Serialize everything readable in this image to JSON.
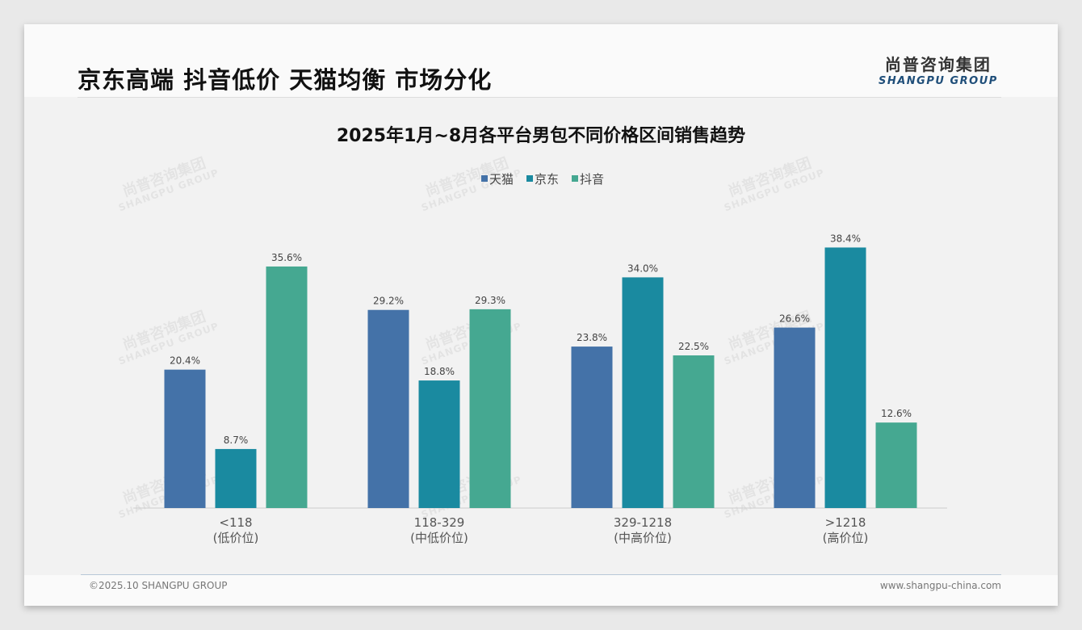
{
  "headline": "京东高端 抖音低价 天猫均衡 市场分化",
  "logo": {
    "cn": "尚普咨询集团",
    "en": "SHANGPU GROUP"
  },
  "footer": {
    "copyright": "©2025.10 SHANGPU GROUP",
    "url": "www.shangpu-china.com"
  },
  "watermark": {
    "cn": "尚普咨询集团",
    "en": "SHANGPU GROUP"
  },
  "colors": {
    "天猫": "#4472a8",
    "京东": "#1a8aa0",
    "抖音": "#45a891"
  },
  "chart_data": {
    "type": "bar",
    "title": "2025年1月~8月各平台男包不同价格区间销售趋势",
    "categories": [
      "<118",
      "118-329",
      "329-1218",
      ">1218"
    ],
    "category_sublabels": [
      "(低价位)",
      "(中低价位)",
      "(中高价位)",
      "(高价位)"
    ],
    "series": [
      {
        "name": "天猫",
        "values": [
          20.4,
          29.2,
          23.8,
          26.6
        ]
      },
      {
        "name": "京东",
        "values": [
          8.7,
          18.8,
          34.0,
          38.4
        ]
      },
      {
        "name": "抖音",
        "values": [
          35.6,
          29.3,
          22.5,
          12.6
        ]
      }
    ],
    "value_format": "percent",
    "ylim": [
      0,
      40
    ],
    "legend": "top-center",
    "grid": false
  }
}
